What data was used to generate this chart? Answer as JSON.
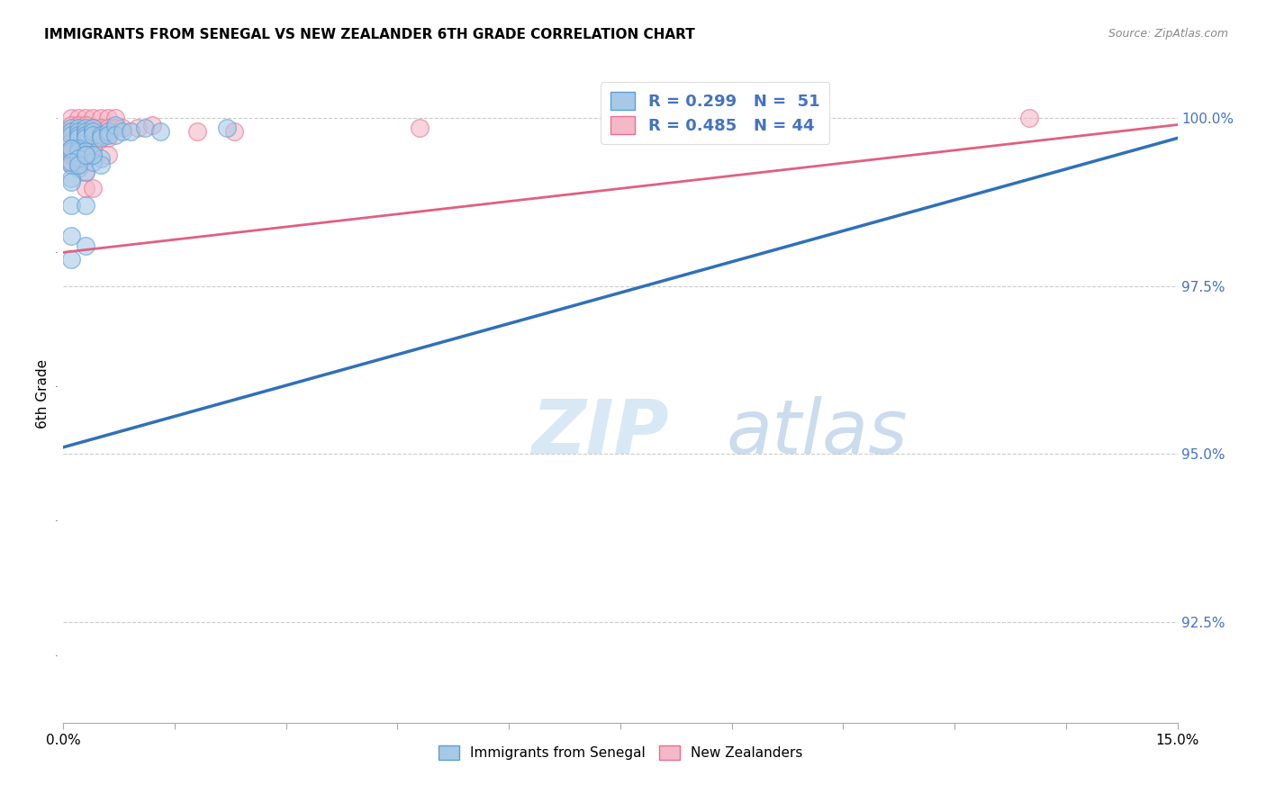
{
  "title": "IMMIGRANTS FROM SENEGAL VS NEW ZEALANDER 6TH GRADE CORRELATION CHART",
  "source": "Source: ZipAtlas.com",
  "ylabel": "6th Grade",
  "ylabel_right_ticks": [
    "100.0%",
    "97.5%",
    "95.0%",
    "92.5%"
  ],
  "ylabel_right_vals": [
    1.0,
    0.975,
    0.95,
    0.925
  ],
  "xmin": 0.0,
  "xmax": 0.15,
  "ymin": 0.91,
  "ymax": 1.008,
  "color_blue": "#a8c8e8",
  "color_pink": "#f4b8c8",
  "color_blue_edge": "#5a9fd4",
  "color_pink_edge": "#e87090",
  "color_blue_line": "#3070b8",
  "color_pink_line": "#e06080",
  "watermark_zip": "ZIP",
  "watermark_atlas": "atlas",
  "blue_line_x": [
    0.0,
    0.15
  ],
  "blue_line_y": [
    0.951,
    0.997
  ],
  "pink_line_x": [
    0.0,
    0.15
  ],
  "pink_line_y": [
    0.98,
    0.999
  ],
  "blue_points": [
    [
      0.001,
      0.9985
    ],
    [
      0.001,
      0.998
    ],
    [
      0.001,
      0.9975
    ],
    [
      0.002,
      0.9985
    ],
    [
      0.002,
      0.998
    ],
    [
      0.002,
      0.9975
    ],
    [
      0.002,
      0.997
    ],
    [
      0.003,
      0.9985
    ],
    [
      0.003,
      0.998
    ],
    [
      0.003,
      0.9975
    ],
    [
      0.003,
      0.997
    ],
    [
      0.004,
      0.9985
    ],
    [
      0.004,
      0.998
    ],
    [
      0.004,
      0.9975
    ],
    [
      0.005,
      0.9975
    ],
    [
      0.005,
      0.997
    ],
    [
      0.006,
      0.998
    ],
    [
      0.006,
      0.9975
    ],
    [
      0.007,
      0.999
    ],
    [
      0.007,
      0.9975
    ],
    [
      0.008,
      0.998
    ],
    [
      0.009,
      0.998
    ],
    [
      0.011,
      0.9985
    ],
    [
      0.013,
      0.998
    ],
    [
      0.022,
      0.9985
    ],
    [
      0.001,
      0.9955
    ],
    [
      0.001,
      0.995
    ],
    [
      0.002,
      0.9955
    ],
    [
      0.002,
      0.995
    ],
    [
      0.003,
      0.995
    ],
    [
      0.003,
      0.9945
    ],
    [
      0.004,
      0.9945
    ],
    [
      0.005,
      0.994
    ],
    [
      0.001,
      0.993
    ],
    [
      0.002,
      0.9925
    ],
    [
      0.003,
      0.992
    ],
    [
      0.001,
      0.991
    ],
    [
      0.001,
      0.9905
    ],
    [
      0.001,
      0.987
    ],
    [
      0.003,
      0.987
    ],
    [
      0.001,
      0.9825
    ],
    [
      0.003,
      0.981
    ],
    [
      0.001,
      0.979
    ],
    [
      0.001,
      0.9955
    ],
    [
      0.002,
      0.994
    ],
    [
      0.004,
      0.9935
    ],
    [
      0.005,
      0.993
    ],
    [
      0.001,
      0.9935
    ],
    [
      0.002,
      0.993
    ],
    [
      0.004,
      0.9945
    ],
    [
      0.003,
      0.9945
    ]
  ],
  "pink_points": [
    [
      0.001,
      1.0
    ],
    [
      0.002,
      1.0
    ],
    [
      0.003,
      1.0
    ],
    [
      0.004,
      1.0
    ],
    [
      0.005,
      1.0
    ],
    [
      0.006,
      1.0
    ],
    [
      0.007,
      1.0
    ],
    [
      0.001,
      0.999
    ],
    [
      0.002,
      0.999
    ],
    [
      0.003,
      0.999
    ],
    [
      0.004,
      0.9985
    ],
    [
      0.005,
      0.9985
    ],
    [
      0.006,
      0.9985
    ],
    [
      0.007,
      0.9985
    ],
    [
      0.008,
      0.9985
    ],
    [
      0.001,
      0.998
    ],
    [
      0.002,
      0.998
    ],
    [
      0.003,
      0.998
    ],
    [
      0.004,
      0.9975
    ],
    [
      0.005,
      0.997
    ],
    [
      0.006,
      0.997
    ],
    [
      0.001,
      0.9965
    ],
    [
      0.002,
      0.9965
    ],
    [
      0.003,
      0.9965
    ],
    [
      0.004,
      0.996
    ],
    [
      0.001,
      0.9945
    ],
    [
      0.002,
      0.994
    ],
    [
      0.001,
      0.993
    ],
    [
      0.002,
      0.993
    ],
    [
      0.003,
      0.992
    ],
    [
      0.006,
      0.9945
    ],
    [
      0.01,
      0.9985
    ],
    [
      0.012,
      0.999
    ],
    [
      0.13,
      1.0
    ],
    [
      0.048,
      0.9985
    ],
    [
      0.018,
      0.998
    ],
    [
      0.023,
      0.998
    ],
    [
      0.003,
      0.9895
    ],
    [
      0.004,
      0.9895
    ],
    [
      0.001,
      0.9945
    ],
    [
      0.002,
      0.9935
    ],
    [
      0.003,
      0.9945
    ],
    [
      0.004,
      0.9955
    ],
    [
      0.002,
      0.9975
    ]
  ]
}
